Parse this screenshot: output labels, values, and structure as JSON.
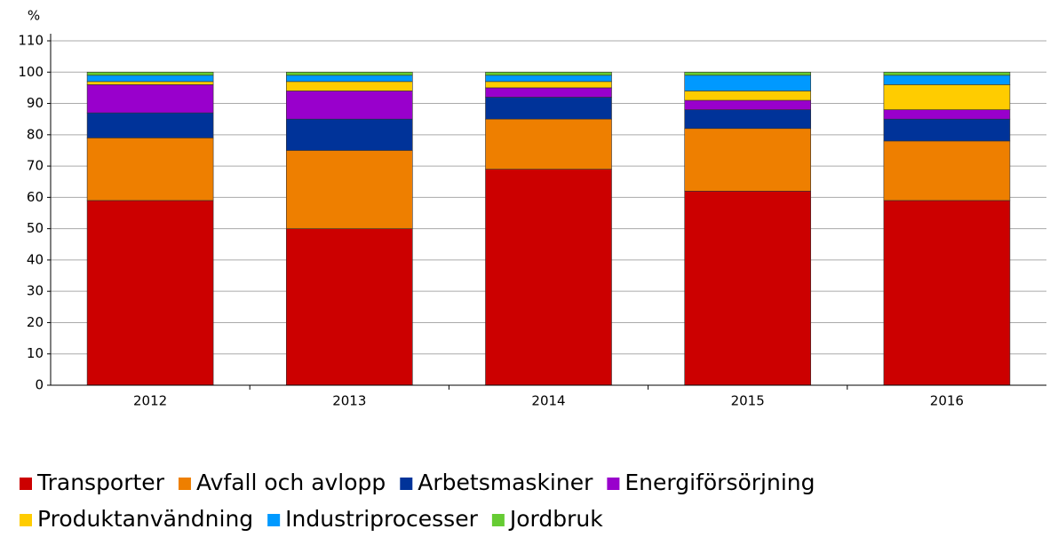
{
  "chart_data": {
    "type": "stacked_bar",
    "y_label": "%",
    "categories": [
      "2012",
      "2013",
      "2014",
      "2015",
      "2016"
    ],
    "series": [
      {
        "name": "Transporter",
        "color": "#cc0000",
        "values": [
          59,
          50,
          69,
          62,
          59
        ]
      },
      {
        "name": "Avfall och avlopp",
        "color": "#ee7f00",
        "values": [
          20,
          25,
          16,
          20,
          19
        ]
      },
      {
        "name": "Arbetsmaskiner",
        "color": "#003399",
        "values": [
          8,
          10,
          7,
          6,
          7
        ]
      },
      {
        "name": "Energiförsörjning",
        "color": "#9900cc",
        "values": [
          9,
          9,
          3,
          3,
          3
        ]
      },
      {
        "name": "Produktanvändning",
        "color": "#ffcc00",
        "values": [
          1,
          3,
          2,
          3,
          8
        ]
      },
      {
        "name": "Industriprocesser",
        "color": "#0099ff",
        "values": [
          2,
          2,
          2,
          5,
          3
        ]
      },
      {
        "name": "Jordbruk",
        "color": "#66cc33",
        "values": [
          1,
          1,
          1,
          1,
          1
        ]
      }
    ],
    "ylim": [
      0,
      110
    ],
    "yticks": [
      0,
      10,
      20,
      30,
      40,
      50,
      60,
      70,
      80,
      90,
      100,
      110
    ],
    "grid": true,
    "legend": "bottom"
  }
}
